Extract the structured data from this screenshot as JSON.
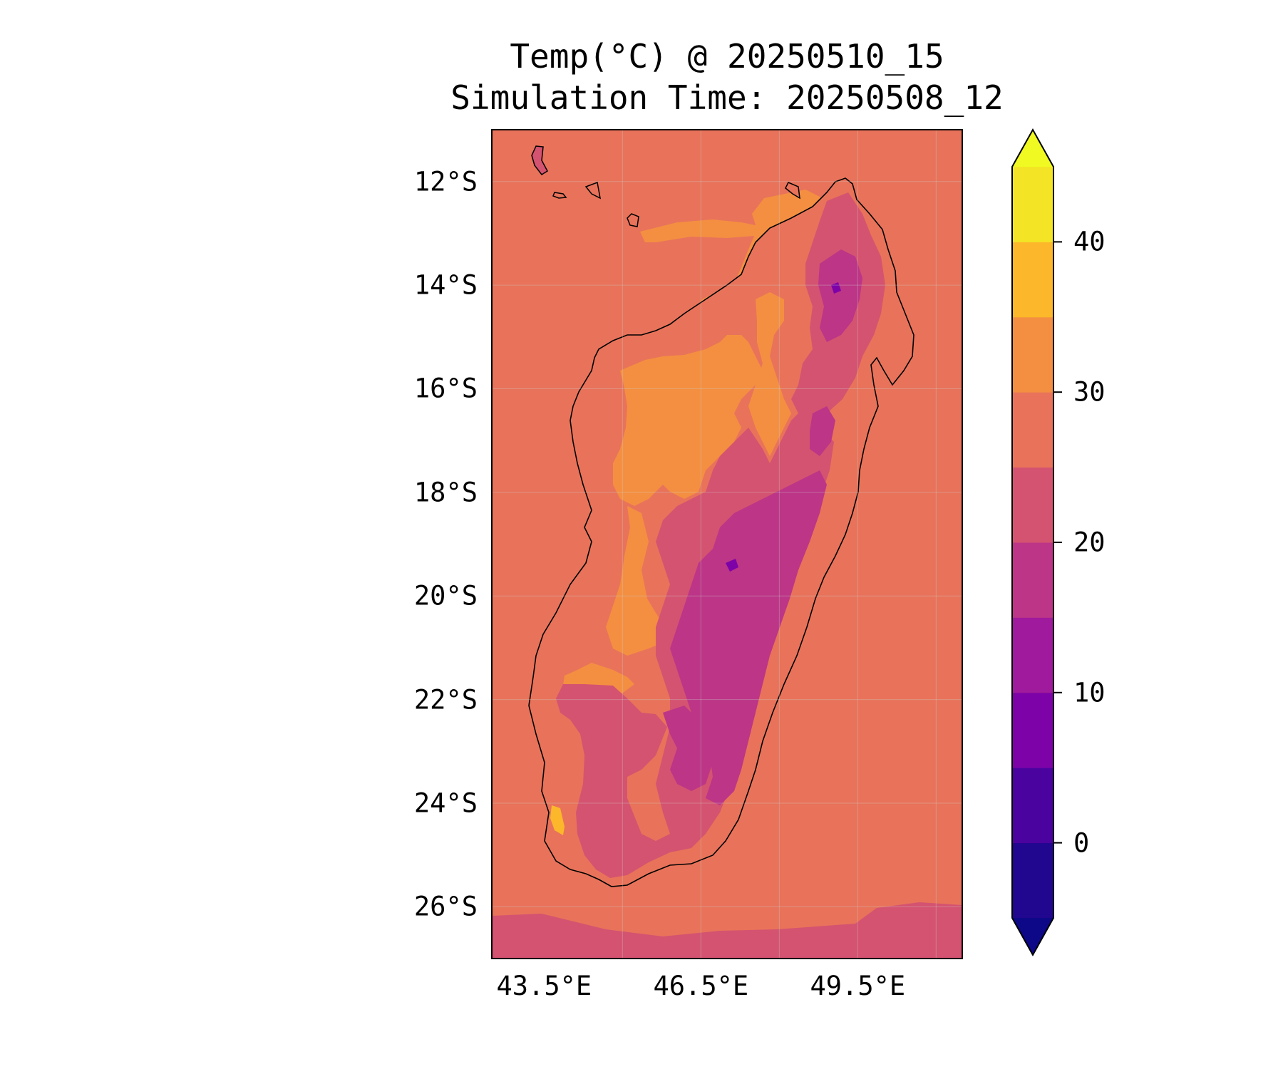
{
  "title": "Temp(°C) @ 20250510_15",
  "subtitle": "Simulation Time: 20250508_12",
  "chart_data": {
    "type": "heatmap",
    "map": "Madagascar regional surface temperature forecast (filled contours)",
    "lat_range": [
      -27,
      -11
    ],
    "lon_range": [
      42.5,
      51.5
    ],
    "lat_ticks": [
      "12°S",
      "14°S",
      "16°S",
      "18°S",
      "20°S",
      "22°S",
      "24°S",
      "26°S"
    ],
    "lat_tick_values": [
      -12,
      -14,
      -16,
      -18,
      -20,
      -22,
      -24,
      -26
    ],
    "lon_ticks": [
      "43.5°E",
      "46.5°E",
      "49.5°E"
    ],
    "lon_tick_values": [
      43.5,
      46.5,
      49.5
    ],
    "colorbar": {
      "ticks": [
        "0",
        "10",
        "20",
        "30",
        "40"
      ],
      "tick_values": [
        0,
        10,
        20,
        30,
        40
      ],
      "levels": [
        -5,
        0,
        5,
        10,
        15,
        20,
        25,
        30,
        35,
        40,
        45
      ],
      "colors": [
        "#21068f",
        "#4b03a0",
        "#7d03a8",
        "#9f1a9c",
        "#bc3587",
        "#d45370",
        "#e8735a",
        "#f48f41",
        "#fcb82a",
        "#f3e526"
      ],
      "under_color": "#0d0887",
      "over_color": "#f0f921",
      "extend": "both"
    },
    "ocean_value_range": [
      25,
      30
    ],
    "grid": true
  }
}
